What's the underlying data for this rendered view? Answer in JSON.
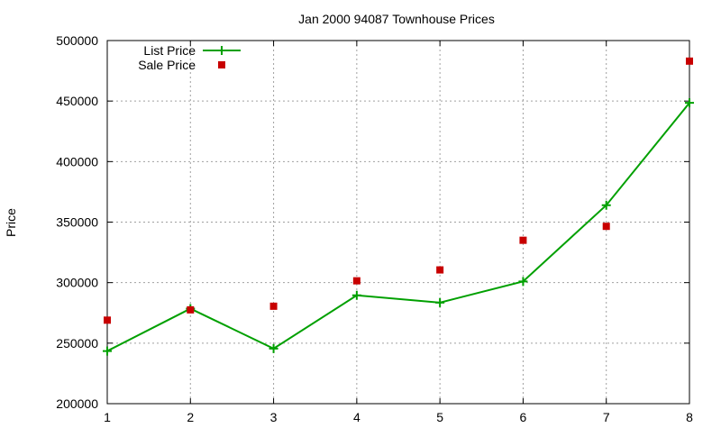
{
  "chart_data": {
    "type": "line",
    "title": "Jan 2000 94087 Townhouse Prices",
    "xlabel": "",
    "ylabel": "Price",
    "x": [
      1,
      2,
      3,
      4,
      5,
      6,
      7,
      8
    ],
    "xlim": [
      1,
      8
    ],
    "ylim": [
      200000,
      500000
    ],
    "xticks": [
      "1",
      "2",
      "3",
      "4",
      "5",
      "6",
      "7",
      "8"
    ],
    "yticks": [
      "200000",
      "250000",
      "300000",
      "350000",
      "400000",
      "450000",
      "500000"
    ],
    "grid": true,
    "legend_position": "top-left",
    "series": [
      {
        "name": "List Price",
        "style": "linespoints",
        "marker": "plus",
        "color": "#00a000",
        "values": [
          243500,
          278500,
          245500,
          289500,
          283500,
          301000,
          364000,
          448500
        ]
      },
      {
        "name": "Sale Price",
        "style": "points",
        "marker": "square",
        "color": "#c80000",
        "values": [
          269000,
          277500,
          280500,
          301500,
          310500,
          335000,
          346500,
          483000
        ]
      }
    ]
  }
}
